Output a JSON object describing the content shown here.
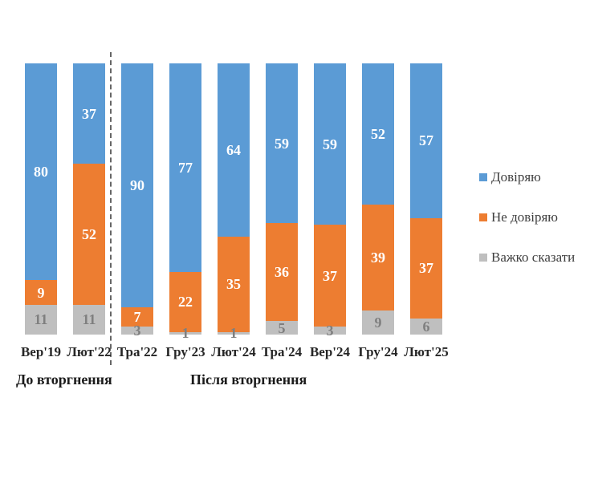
{
  "chart_data": {
    "type": "bar",
    "subtype": "stacked-100-percent",
    "orientation": "vertical",
    "categories": [
      "Вер'19",
      "Лют'22",
      "Тра'22",
      "Гру'23",
      "Лют'24",
      "Тра'24",
      "Вер'24",
      "Гру'24",
      "Лют'25"
    ],
    "series": [
      {
        "name": "Довіряю",
        "color": "#5B9BD5",
        "label_color": "#ffffff",
        "values": [
          80,
          37,
          90,
          77,
          64,
          59,
          59,
          52,
          57
        ]
      },
      {
        "name": "Не довіряю",
        "color": "#ED7D31",
        "label_color": "#ffffff",
        "values": [
          9,
          52,
          7,
          22,
          35,
          36,
          37,
          39,
          37
        ]
      },
      {
        "name": "Важко сказати",
        "color": "#BFBFBF",
        "label_color": "#7F7F7F",
        "values": [
          11,
          11,
          3,
          1,
          1,
          5,
          3,
          9,
          6
        ]
      }
    ],
    "annotations": {
      "before": "До вторгнення",
      "after": "Після вторгнення"
    },
    "separator_after_category_index": 1,
    "legend_position": "right",
    "grid": false,
    "ylim": [
      0,
      100
    ]
  }
}
